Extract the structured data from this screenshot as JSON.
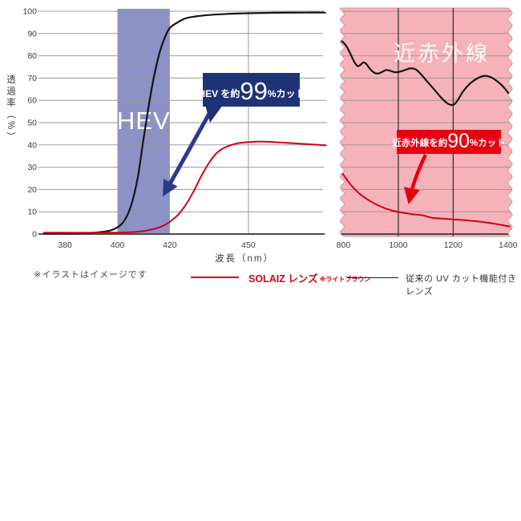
{
  "note": "※イラストはイメージです",
  "legend": [
    {
      "label": "SOLAIZ レンズ",
      "sub": "※ライトブラウン",
      "color": "#cf0016"
    },
    {
      "label": "従来の UV カット機能付きレンズ",
      "color": "#1a1a1a"
    }
  ],
  "chart_data": {
    "type": "line",
    "xlabel": "波長（nm）",
    "ylabel": "透過率（%）",
    "ylim": [
      0,
      100
    ],
    "yticks": [
      0,
      10,
      20,
      30,
      40,
      50,
      60,
      70,
      80,
      90,
      100
    ],
    "grid": true,
    "legend_position": "bottom",
    "panels": [
      {
        "name": "visible-light",
        "xdomain": [
          372,
          480
        ],
        "xticks": [
          380,
          400,
          420,
          450
        ],
        "vgrid": [
          450
        ],
        "band": {
          "label": "HEV",
          "from": 400,
          "to": 420,
          "color": "#8c91c6"
        },
        "series": [
          {
            "key": "conventional",
            "color": "#141414",
            "points": [
              [
                372,
                0.3
              ],
              [
                385,
                0.3
              ],
              [
                392,
                0.7
              ],
              [
                397,
                1.5
              ],
              [
                400,
                3
              ],
              [
                402,
                5
              ],
              [
                404,
                9
              ],
              [
                406,
                16
              ],
              [
                408,
                27
              ],
              [
                410,
                43
              ],
              [
                412,
                58
              ],
              [
                414,
                71
              ],
              [
                416,
                81
              ],
              [
                418,
                88
              ],
              [
                420,
                92.5
              ],
              [
                423,
                95
              ],
              [
                426,
                96.8
              ],
              [
                430,
                97.7
              ],
              [
                435,
                98.3
              ],
              [
                442,
                98.8
              ],
              [
                450,
                99.1
              ],
              [
                460,
                99.3
              ],
              [
                472,
                99.4
              ],
              [
                480,
                99.4
              ]
            ]
          },
          {
            "key": "solaiz",
            "color": "#cf0016",
            "points": [
              [
                372,
                0.6
              ],
              [
                396,
                0.6
              ],
              [
                404,
                0.8
              ],
              [
                409,
                1.2
              ],
              [
                413,
                2
              ],
              [
                417,
                3.5
              ],
              [
                420,
                5.5
              ],
              [
                423,
                8.5
              ],
              [
                426,
                13
              ],
              [
                429,
                19
              ],
              [
                432,
                26
              ],
              [
                435,
                32
              ],
              [
                438,
                36.5
              ],
              [
                441,
                38.8
              ],
              [
                445,
                40.5
              ],
              [
                449,
                41.2
              ],
              [
                455,
                41.5
              ],
              [
                461,
                41.2
              ],
              [
                469,
                40.6
              ],
              [
                480,
                39.8
              ]
            ]
          }
        ],
        "annotation": {
          "prefix": "HEV を約",
          "value": "99",
          "suffix": "%カット",
          "bg": "#1e3377",
          "arrow_color": "#2b3a8f"
        }
      },
      {
        "name": "near-infrared",
        "label": "近赤外線",
        "bg": "#f5b2b9",
        "xdomain": [
          790,
          1415
        ],
        "xticks": [
          800,
          1000,
          1200,
          1400
        ],
        "vgrid": [
          1000,
          1200
        ],
        "series": [
          {
            "key": "conventional",
            "color": "#141414",
            "points": [
              [
                795,
                86.5
              ],
              [
                810,
                84.5
              ],
              [
                825,
                81
              ],
              [
                840,
                77.2
              ],
              [
                852,
                75.4
              ],
              [
                862,
                75.9
              ],
              [
                872,
                77
              ],
              [
                882,
                76.5
              ],
              [
                895,
                74.4
              ],
              [
                910,
                72.6
              ],
              [
                925,
                72
              ],
              [
                940,
                72.7
              ],
              [
                955,
                73.6
              ],
              [
                970,
                73.3
              ],
              [
                985,
                72.7
              ],
              [
                1000,
                72.7
              ],
              [
                1020,
                73.4
              ],
              [
                1042,
                74.3
              ],
              [
                1062,
                74
              ],
              [
                1082,
                71.8
              ],
              [
                1105,
                68.5
              ],
              [
                1130,
                65
              ],
              [
                1158,
                61
              ],
              [
                1182,
                58.4
              ],
              [
                1200,
                58
              ],
              [
                1214,
                59.6
              ],
              [
                1236,
                64
              ],
              [
                1262,
                67.6
              ],
              [
                1290,
                70
              ],
              [
                1315,
                71
              ],
              [
                1340,
                70.2
              ],
              [
                1364,
                68.2
              ],
              [
                1386,
                65.6
              ],
              [
                1405,
                62.6
              ]
            ]
          },
          {
            "key": "solaiz",
            "color": "#cf0016",
            "points": [
              [
                795,
                27.5
              ],
              [
                815,
                24
              ],
              [
                835,
                21
              ],
              [
                855,
                18.5
              ],
              [
                875,
                16.6
              ],
              [
                895,
                15
              ],
              [
                915,
                13.6
              ],
              [
                935,
                12.4
              ],
              [
                955,
                11.4
              ],
              [
                975,
                10.6
              ],
              [
                1000,
                9.9
              ],
              [
                1030,
                9.3
              ],
              [
                1060,
                8.8
              ],
              [
                1085,
                8.5
              ],
              [
                1102,
                8
              ],
              [
                1122,
                7.3
              ],
              [
                1152,
                7
              ],
              [
                1200,
                6.6
              ],
              [
                1252,
                6.1
              ],
              [
                1302,
                5.5
              ],
              [
                1352,
                4.6
              ],
              [
                1405,
                3.4
              ]
            ]
          }
        ],
        "annotation": {
          "prefix": "近赤外線を約",
          "value": "90",
          "suffix": "%カット",
          "bg": "#e60012",
          "arrow_color": "#e60012"
        }
      }
    ]
  }
}
